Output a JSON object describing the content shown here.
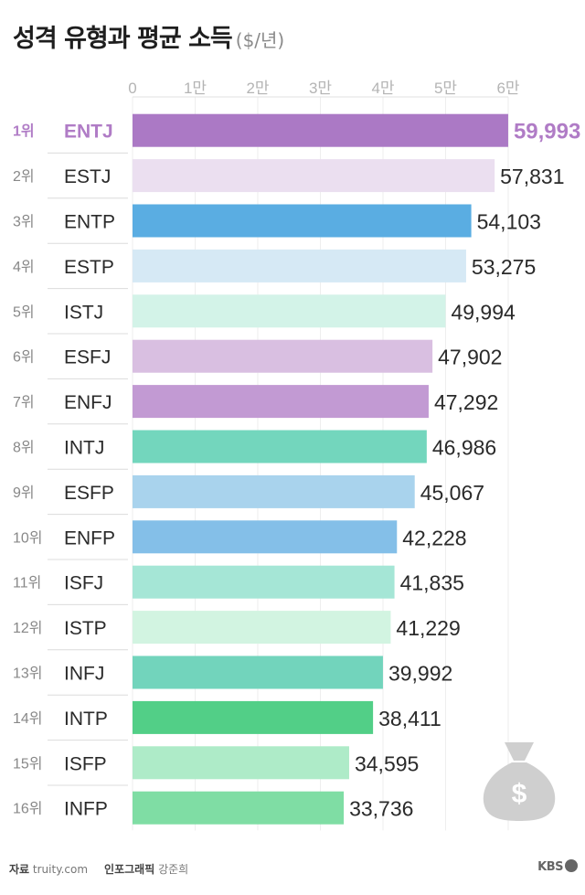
{
  "header": {
    "title": "성격 유형과 평균 소득",
    "unit": "($/년)"
  },
  "footer": {
    "source_label": "자료",
    "source": "truity.com",
    "credit_label": "인포그래픽",
    "credit": "강준희",
    "logo": "KBS"
  },
  "colors": {
    "highlight": "#b07cc6",
    "rank_text": "#888888"
  },
  "icons": {
    "money_bag": "money-bag-icon"
  },
  "chart_data": {
    "type": "bar",
    "orientation": "horizontal",
    "title": "성격 유형과 평균 소득",
    "unit": "($/년)",
    "xlim": [
      0,
      60000
    ],
    "xticks": [
      0,
      10000,
      20000,
      30000,
      40000,
      50000,
      60000
    ],
    "xtick_labels": [
      "0",
      "1만",
      "2만",
      "3만",
      "4만",
      "5만",
      "6만"
    ],
    "grid": true,
    "rows": [
      {
        "rank": "1위",
        "type": "ENTJ",
        "value": 59993,
        "label": "59,993",
        "color": "#ab79c5"
      },
      {
        "rank": "2위",
        "type": "ESTJ",
        "value": 57831,
        "label": "57,831",
        "color": "#ebdff0"
      },
      {
        "rank": "3위",
        "type": "ENTP",
        "value": 54103,
        "label": "54,103",
        "color": "#5aade2"
      },
      {
        "rank": "4위",
        "type": "ESTP",
        "value": 53275,
        "label": "53,275",
        "color": "#d6e9f5"
      },
      {
        "rank": "5위",
        "type": "ISTJ",
        "value": 49994,
        "label": "49,994",
        "color": "#d3f3e8"
      },
      {
        "rank": "6위",
        "type": "ESFJ",
        "value": 47902,
        "label": "47,902",
        "color": "#d9bfe1"
      },
      {
        "rank": "7위",
        "type": "ENFJ",
        "value": 47292,
        "label": "47,292",
        "color": "#c29ad3"
      },
      {
        "rank": "8위",
        "type": "INTJ",
        "value": 46986,
        "label": "46,986",
        "color": "#73d6bd"
      },
      {
        "rank": "9위",
        "type": "ESFP",
        "value": 45067,
        "label": "45,067",
        "color": "#a9d3ed"
      },
      {
        "rank": "10위",
        "type": "ENFP",
        "value": 42228,
        "label": "42,228",
        "color": "#84bfe8"
      },
      {
        "rank": "11위",
        "type": "ISFJ",
        "value": 41835,
        "label": "41,835",
        "color": "#a5e6d6"
      },
      {
        "rank": "12위",
        "type": "ISTP",
        "value": 41229,
        "label": "41,229",
        "color": "#d2f4e1"
      },
      {
        "rank": "13위",
        "type": "INFJ",
        "value": 39992,
        "label": "39,992",
        "color": "#72d4bc"
      },
      {
        "rank": "14위",
        "type": "INTP",
        "value": 38411,
        "label": "38,411",
        "color": "#52cf87"
      },
      {
        "rank": "15위",
        "type": "ISFP",
        "value": 34595,
        "label": "34,595",
        "color": "#aeebc8"
      },
      {
        "rank": "16위",
        "type": "INFP",
        "value": 33736,
        "label": "33,736",
        "color": "#7fdda4"
      }
    ]
  }
}
